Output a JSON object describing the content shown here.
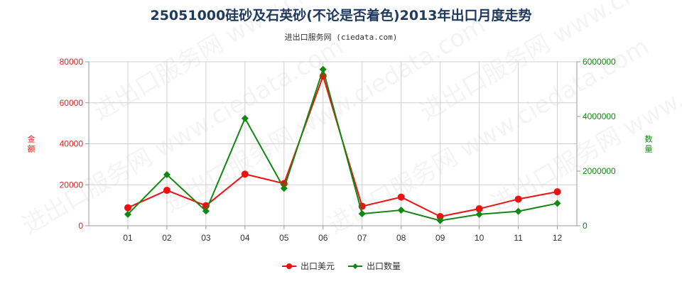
{
  "chart_data": {
    "type": "line",
    "title": "25051000硅砂及石英砂(不论是否着色)2013年出口月度走势",
    "subtitle": "进出口服务网 (ciedata.com)",
    "watermark": "进出口服务网 www.ciedata.com",
    "categories": [
      "01",
      "02",
      "03",
      "04",
      "05",
      "06",
      "07",
      "08",
      "09",
      "10",
      "11",
      "12"
    ],
    "y_left": {
      "label": "金额",
      "range": [
        0,
        80000
      ],
      "ticks": [
        0,
        20000,
        40000,
        60000,
        80000
      ],
      "color": "#dd2222"
    },
    "y_right": {
      "label": "数量",
      "range": [
        0,
        6000000
      ],
      "ticks": [
        0,
        2000000,
        4000000,
        6000000
      ],
      "color": "#118811"
    },
    "grid": true,
    "legend_position": "bottom-center",
    "series": [
      {
        "name": "出口美元",
        "axis": "left",
        "color": "#ee1111",
        "marker": "circle",
        "values": [
          8800,
          17300,
          9800,
          25200,
          20600,
          73000,
          9500,
          14000,
          4500,
          8300,
          13000,
          16600
        ]
      },
      {
        "name": "出口数量",
        "axis": "right",
        "color": "#118811",
        "marker": "diamond",
        "values": [
          420000,
          1870000,
          540000,
          3930000,
          1370000,
          5720000,
          440000,
          570000,
          190000,
          420000,
          530000,
          820000
        ]
      }
    ]
  }
}
